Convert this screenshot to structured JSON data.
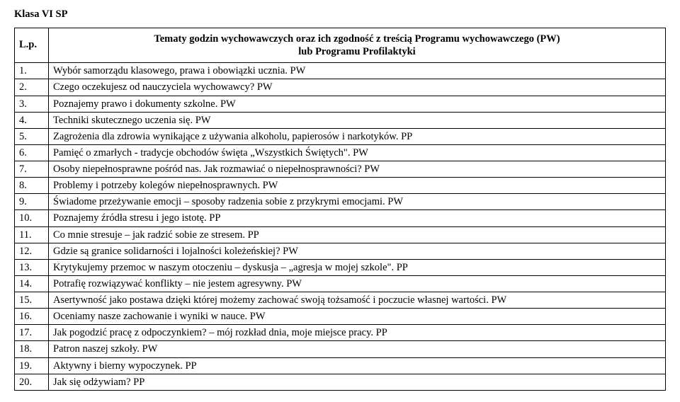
{
  "page_title": "Klasa VI SP",
  "header": {
    "lp_label": "L.p.",
    "main_line1": "Tematy godzin wychowawczych oraz ich zgodność z treścią Programu wychowawczego (PW)",
    "main_line2": "lub Programu Profilaktyki"
  },
  "rows": [
    {
      "n": "1.",
      "text": "Wybór samorządu klasowego, prawa i obowiązki ucznia.     PW"
    },
    {
      "n": "2.",
      "text": "Czego oczekujesz od nauczyciela wychowawcy?     PW"
    },
    {
      "n": "3.",
      "text": "Poznajemy prawo i dokumenty szkolne.     PW"
    },
    {
      "n": "4.",
      "text": "Techniki skutecznego uczenia się.     PW"
    },
    {
      "n": "5.",
      "text": "Zagrożenia dla zdrowia wynikające z używania alkoholu, papierosów i narkotyków.     PP"
    },
    {
      "n": "6.",
      "text": "Pamięć o zmarłych - tradycje obchodów święta „Wszystkich Świętych\".     PW"
    },
    {
      "n": "7.",
      "text": "Osoby niepełnosprawne pośród nas. Jak rozmawiać o niepełnosprawności?     PW"
    },
    {
      "n": "8.",
      "text": "Problemy i potrzeby kolegów niepełnosprawnych.     PW"
    },
    {
      "n": "9.",
      "text": "Świadome przeżywanie emocji – sposoby radzenia sobie z przykrymi emocjami.     PW"
    },
    {
      "n": "10.",
      "text": "Poznajemy źródła stresu i jego istotę.     PP"
    },
    {
      "n": "11.",
      "text": "Co mnie stresuje – jak radzić sobie ze stresem.     PP"
    },
    {
      "n": "12.",
      "text": "Gdzie są granice solidarności i lojalności koleżeńskiej?     PW"
    },
    {
      "n": "13.",
      "text": "Krytykujemy przemoc w naszym otoczeniu – dyskusja – „agresja w mojej szkole\".     PP"
    },
    {
      "n": "14.",
      "text": "Potrafię rozwiązywać konflikty – nie jestem agresywny.     PW"
    },
    {
      "n": "15.",
      "text": "Asertywność jako postawa dzięki której możemy zachować swoją tożsamość i poczucie własnej wartości.     PW"
    },
    {
      "n": "16.",
      "text": "Oceniamy nasze zachowanie i wyniki w nauce.     PW"
    },
    {
      "n": "17.",
      "text": "Jak pogodzić pracę z odpoczynkiem? – mój rozkład dnia, moje miejsce pracy.     PP"
    },
    {
      "n": "18.",
      "text": "Patron naszej szkoły.     PW"
    },
    {
      "n": "19.",
      "text": "Aktywny i bierny wypoczynek.     PP"
    },
    {
      "n": "20.",
      "text": "Jak się odżywiam?     PP"
    }
  ]
}
